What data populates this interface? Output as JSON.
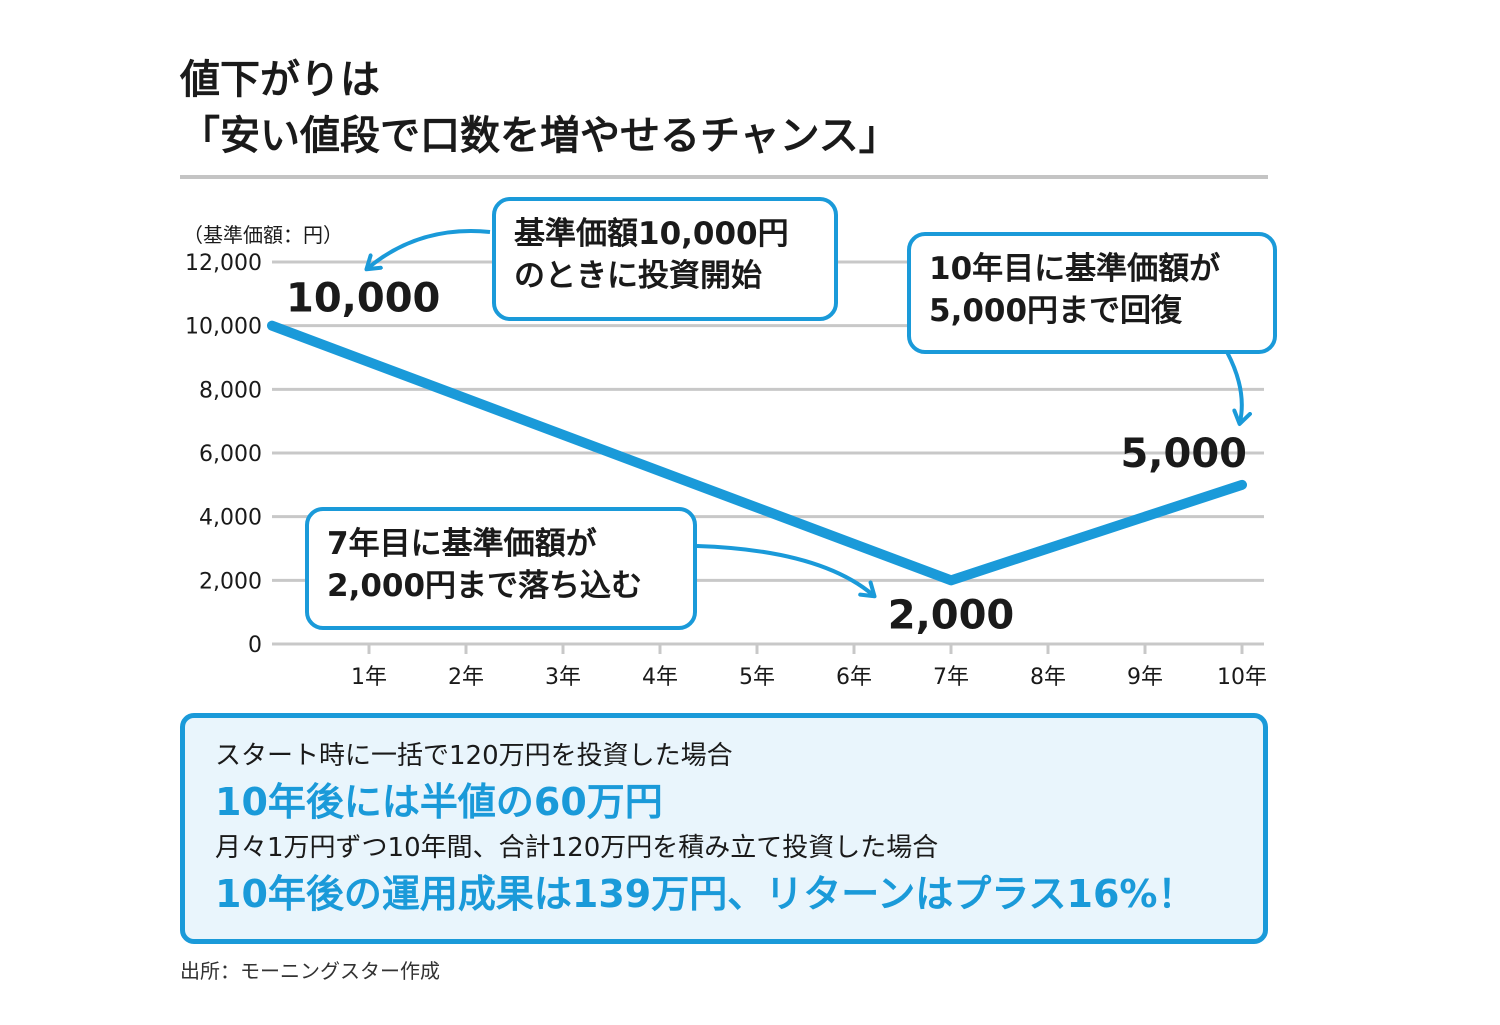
{
  "title": {
    "line1": "値下がりは",
    "line2": "「安い値段で口数を増やせるチャンス」"
  },
  "chart_data": {
    "type": "line",
    "title": "値下がりは「安い値段で口数を増やせるチャンス」",
    "ylabel": "（基準価額：円）",
    "xlabel": "",
    "ylim": [
      0,
      12000
    ],
    "yticks": [
      0,
      2000,
      4000,
      6000,
      8000,
      10000,
      12000
    ],
    "ytick_labels": [
      "0",
      "2,000",
      "4,000",
      "6,000",
      "8,000",
      "10,000",
      "12,000"
    ],
    "categories": [
      "1年",
      "2年",
      "3年",
      "4年",
      "5年",
      "6年",
      "7年",
      "8年",
      "9年",
      "10年"
    ],
    "grid": true,
    "series": [
      {
        "x": [
          0,
          7,
          10
        ],
        "values": [
          10000,
          2000,
          5000
        ]
      }
    ],
    "point_labels": [
      {
        "x": 0,
        "y": 10000,
        "text": "10,000"
      },
      {
        "x": 7,
        "y": 2000,
        "text": "2,000"
      },
      {
        "x": 10,
        "y": 5000,
        "text": "5,000"
      }
    ],
    "line_color": "#1a9ad9",
    "grid_color": "#c8c8c8"
  },
  "callouts": {
    "start": [
      "基準価額10,000円",
      "のときに投資開始"
    ],
    "bottom": [
      "7年目に基準価額が",
      "2,000円まで落ち込む"
    ],
    "recover": [
      "10年目に基準価額が",
      "5,000円まで回復"
    ]
  },
  "summary": {
    "line1": "スタート時に一括で120万円を投資した場合",
    "line2": "10年後には半値の60万円",
    "line3": "月々1万円ずつ10年間、合計120万円を積み立て投資した場合",
    "line4": "10年後の運用成果は139万円、リターンはプラス16%！"
  },
  "source": "出所：モーニングスター作成",
  "colors": {
    "accent": "#1a9ad9",
    "summary_bg": "#e9f5fc"
  }
}
